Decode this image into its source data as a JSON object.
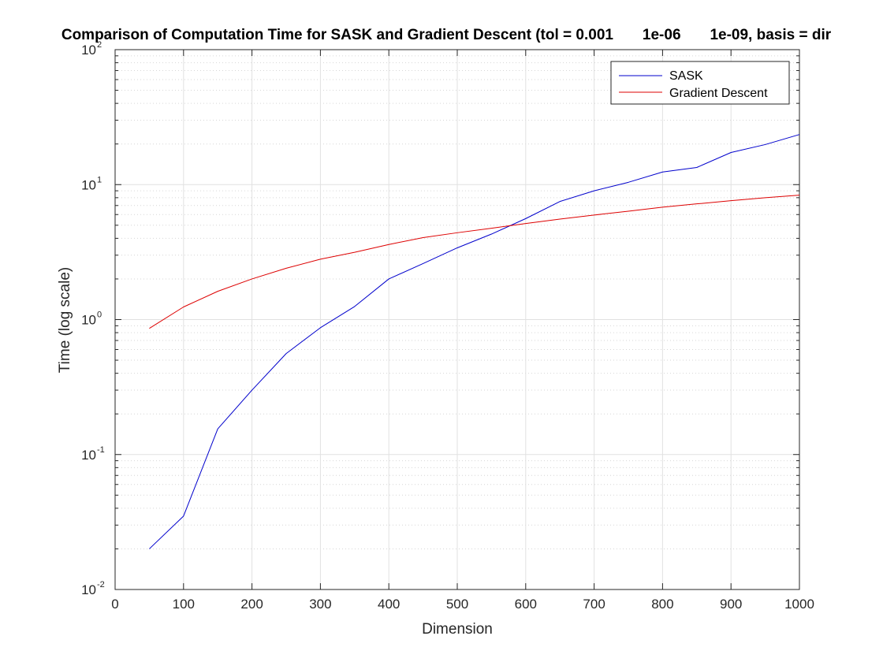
{
  "chart_data": {
    "type": "line",
    "title": "Comparison of Computation Time for SASK and Gradient Descent (tol = 0.001       1e-06       1e-09, basis = dir",
    "xlabel": "Dimension",
    "ylabel": "Time (log scale)",
    "xlim": [
      0,
      1000
    ],
    "ylim": [
      0.01,
      100
    ],
    "yscale": "log",
    "grid": true,
    "minor_grid": true,
    "legend_position": "top-right",
    "x_ticks": [
      "0",
      "100",
      "200",
      "300",
      "400",
      "500",
      "600",
      "700",
      "800",
      "900",
      "1000"
    ],
    "y_ticks": [
      {
        "base": "10",
        "exp": "-2"
      },
      {
        "base": "10",
        "exp": "-1"
      },
      {
        "base": "10",
        "exp": "0"
      },
      {
        "base": "10",
        "exp": "1"
      },
      {
        "base": "10",
        "exp": "2"
      }
    ],
    "x": [
      50,
      100,
      150,
      200,
      250,
      300,
      350,
      400,
      450,
      500,
      550,
      600,
      650,
      700,
      750,
      800,
      850,
      900,
      950,
      1000
    ],
    "series": [
      {
        "name": "SASK",
        "color": "#0000cc",
        "values": [
          0.02,
          0.035,
          0.155,
          0.3,
          0.56,
          0.87,
          1.25,
          2.0,
          2.6,
          3.4,
          4.3,
          5.6,
          7.5,
          9.0,
          10.4,
          12.4,
          13.4,
          17.3,
          19.8,
          23.5
        ]
      },
      {
        "name": "Gradient Descent",
        "color": "#dd0000",
        "values": [
          0.86,
          1.24,
          1.62,
          2.0,
          2.4,
          2.8,
          3.15,
          3.6,
          4.05,
          4.4,
          4.75,
          5.15,
          5.55,
          5.95,
          6.35,
          6.8,
          7.2,
          7.6,
          8.0,
          8.35
        ]
      }
    ]
  }
}
